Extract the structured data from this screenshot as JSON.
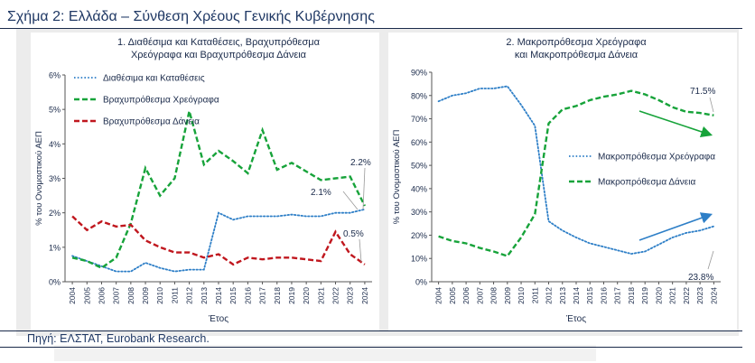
{
  "figure": {
    "title": "Σχήμα 2: Ελλάδα – Σύνθεση Χρέους Γενικής Κυβέρνησης",
    "source": "Πηγή: ΕΛΣΤΑΤ, Eurobank Research."
  },
  "colors": {
    "blue": "#2e7fc7",
    "green": "#17a33a",
    "red": "#c0171e",
    "text": "#1a2a4a"
  },
  "chart_data": [
    {
      "type": "line",
      "title_lines": [
        "1. Διαθέσιμα και Καταθέσεις, Βραχυπρόθεσμα",
        "Χρεόγραφα και Βραχυπρόθεσμα Δάνεια"
      ],
      "xlabel": "Έτος",
      "ylabel": "% του Ονομαστικού ΑΕΠ",
      "categories": [
        "2004",
        "2005",
        "2006",
        "2007",
        "2008",
        "2009",
        "2010",
        "2011",
        "2012",
        "2013",
        "2014",
        "2015",
        "2016",
        "2017",
        "2018",
        "2019",
        "2020",
        "2021",
        "2022",
        "2023",
        "2024"
      ],
      "ylim": [
        0,
        6
      ],
      "yticks": [
        0,
        1,
        2,
        3,
        4,
        5,
        6
      ],
      "ytick_labels": [
        "0%",
        "1%",
        "2%",
        "3%",
        "4%",
        "5%",
        "6%"
      ],
      "legend_position": "top-left",
      "series": [
        {
          "name": "Διαθέσιμα και Καταθέσεις",
          "color": "blue",
          "style": "dotted",
          "values": [
            0.75,
            0.6,
            0.45,
            0.3,
            0.3,
            0.55,
            0.4,
            0.3,
            0.35,
            0.35,
            2.0,
            1.8,
            1.9,
            1.9,
            1.9,
            1.95,
            1.9,
            1.9,
            2.0,
            2.0,
            2.1
          ]
        },
        {
          "name": "Βραχυπρόθεσμα Χρεόγραφα",
          "color": "green",
          "style": "dashed",
          "values": [
            0.7,
            0.6,
            0.4,
            0.7,
            1.7,
            3.3,
            2.5,
            3.0,
            4.95,
            3.4,
            3.8,
            3.5,
            3.15,
            4.4,
            3.25,
            3.45,
            3.2,
            2.95,
            3.0,
            3.05,
            2.2
          ]
        },
        {
          "name": "Βραχυπρόθεσμα Δάνεια",
          "color": "red",
          "style": "dashed",
          "values": [
            1.9,
            1.5,
            1.75,
            1.6,
            1.65,
            1.2,
            1.0,
            0.85,
            0.85,
            0.7,
            0.8,
            0.5,
            0.7,
            0.65,
            0.7,
            0.7,
            0.65,
            0.6,
            1.45,
            0.8,
            0.5
          ]
        }
      ],
      "annotations": [
        "2.2%",
        "2.1%",
        "0.5%"
      ]
    },
    {
      "type": "line",
      "title_lines": [
        "2. Μακροπρόθεσμα Χρεόγραφα",
        "και Μακροπρόθεσμα Δάνεια"
      ],
      "xlabel": "Έτος",
      "ylabel": "% του Ονομαστικού ΑΕΠ",
      "categories": [
        "2004",
        "2005",
        "2006",
        "2007",
        "2008",
        "2009",
        "2010",
        "2011",
        "2012",
        "2013",
        "2014",
        "2015",
        "2016",
        "2017",
        "2018",
        "2019",
        "2020",
        "2021",
        "2022",
        "2023",
        "2024"
      ],
      "ylim": [
        0,
        90
      ],
      "yticks": [
        0,
        10,
        20,
        30,
        40,
        50,
        60,
        70,
        80,
        90
      ],
      "ytick_labels": [
        "0%",
        "10%",
        "20%",
        "30%",
        "40%",
        "50%",
        "60%",
        "70%",
        "80%",
        "90%"
      ],
      "legend_position": "center-right",
      "series": [
        {
          "name": "Μακροπρόθεσμα Χρεόγραφα",
          "color": "blue",
          "style": "dotted",
          "values": [
            77.5,
            80,
            81,
            83,
            83,
            84,
            76,
            67,
            26,
            22,
            19,
            16.5,
            15,
            13.5,
            12,
            13,
            16,
            19,
            21,
            22,
            23.8
          ]
        },
        {
          "name": "Μακροπρόθεσμα Δάνεια",
          "color": "green",
          "style": "dashed",
          "values": [
            19.5,
            17.5,
            16.5,
            14.5,
            13,
            11,
            19,
            29,
            68,
            74,
            75.5,
            78,
            79.5,
            80.5,
            82,
            80.5,
            78,
            75,
            73,
            72.5,
            71.5
          ]
        }
      ],
      "annotations": [
        "71.5%",
        "23.8%"
      ]
    }
  ]
}
